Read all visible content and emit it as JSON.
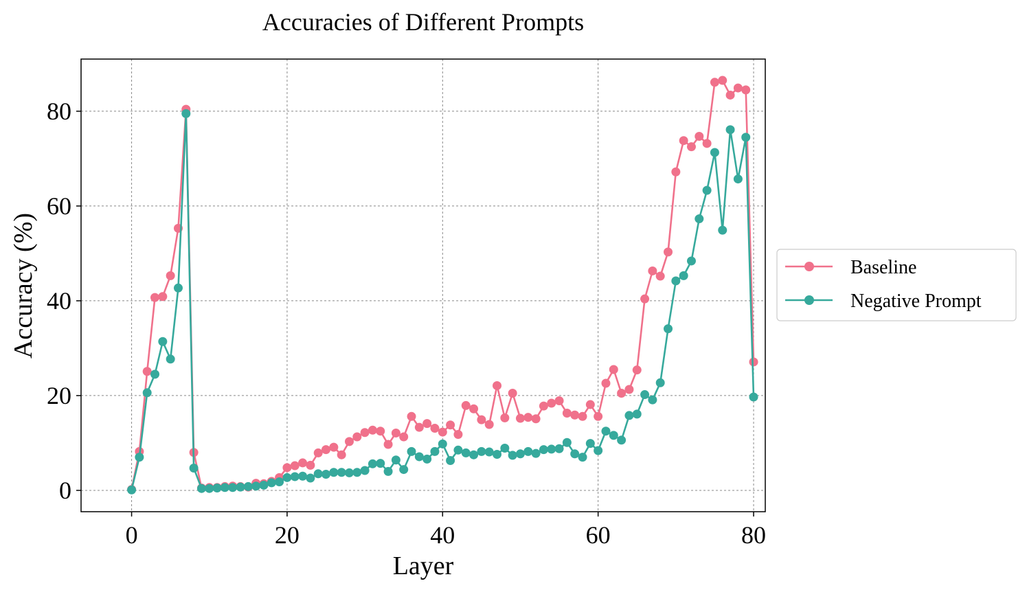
{
  "chart_data": {
    "type": "line",
    "title": "Accuracies of Different Prompts",
    "xlabel": "Layer",
    "ylabel": "Accuracy (%)",
    "xlim": [
      -6.5,
      81.5
    ],
    "ylim": [
      -4.5,
      91
    ],
    "xticks": [
      0,
      20,
      40,
      60,
      80
    ],
    "yticks": [
      0,
      20,
      40,
      60,
      80
    ],
    "grid": true,
    "legend_position": "outside-right",
    "x": [
      0,
      1,
      2,
      3,
      4,
      5,
      6,
      7,
      8,
      9,
      10,
      11,
      12,
      13,
      14,
      15,
      16,
      17,
      18,
      19,
      20,
      21,
      22,
      23,
      24,
      25,
      26,
      27,
      28,
      29,
      30,
      31,
      32,
      33,
      34,
      35,
      36,
      37,
      38,
      39,
      40,
      41,
      42,
      43,
      44,
      45,
      46,
      47,
      48,
      49,
      50,
      51,
      52,
      53,
      54,
      55,
      56,
      57,
      58,
      59,
      60,
      61,
      62,
      63,
      64,
      65,
      66,
      67,
      68,
      69,
      70,
      71,
      72,
      73,
      74,
      75,
      76,
      77,
      78,
      79,
      80
    ],
    "series": [
      {
        "name": "Baseline",
        "color": "#f0718b",
        "values": [
          0.2,
          8.2,
          25.1,
          40.7,
          40.9,
          45.3,
          55.3,
          80.4,
          8.0,
          0.5,
          0.6,
          0.6,
          0.8,
          0.9,
          0.8,
          0.7,
          1.5,
          1.4,
          1.9,
          2.7,
          4.8,
          5.2,
          5.8,
          5.3,
          7.9,
          8.6,
          9.1,
          7.5,
          10.3,
          11.3,
          12.2,
          12.7,
          12.5,
          9.7,
          12.1,
          11.3,
          15.6,
          13.3,
          14.1,
          13.1,
          12.3,
          13.8,
          11.8,
          17.9,
          17.2,
          14.9,
          13.9,
          22.1,
          15.3,
          20.5,
          15.2,
          15.4,
          15.1,
          17.8,
          18.4,
          18.9,
          16.3,
          15.9,
          15.6,
          18.1,
          15.6,
          22.6,
          25.5,
          20.5,
          21.3,
          25.4,
          40.4,
          46.3,
          45.2,
          50.3,
          67.2,
          73.8,
          72.5,
          74.7,
          73.2,
          86.1,
          86.5,
          83.4,
          84.9,
          84.5,
          27.1
        ]
      },
      {
        "name": "Negative Prompt",
        "color": "#36a99c",
        "values": [
          0.1,
          7.0,
          20.6,
          24.5,
          31.4,
          27.7,
          42.7,
          79.5,
          4.7,
          0.4,
          0.4,
          0.5,
          0.6,
          0.6,
          0.7,
          0.8,
          0.9,
          1.1,
          1.6,
          1.8,
          2.7,
          2.9,
          3.0,
          2.6,
          3.5,
          3.4,
          3.8,
          3.8,
          3.7,
          3.8,
          4.2,
          5.6,
          5.7,
          4.0,
          6.4,
          4.4,
          8.2,
          7.1,
          6.6,
          8.2,
          9.8,
          6.3,
          8.5,
          7.9,
          7.5,
          8.2,
          8.1,
          7.6,
          8.9,
          7.4,
          7.7,
          8.2,
          7.8,
          8.6,
          8.7,
          8.8,
          10.1,
          7.7,
          7.0,
          9.9,
          8.4,
          12.5,
          11.6,
          10.6,
          15.8,
          16.1,
          20.2,
          19.1,
          22.7,
          34.1,
          44.2,
          45.3,
          48.4,
          57.3,
          63.3,
          71.3,
          54.9,
          76.1,
          65.7,
          74.5,
          19.7
        ]
      }
    ]
  }
}
